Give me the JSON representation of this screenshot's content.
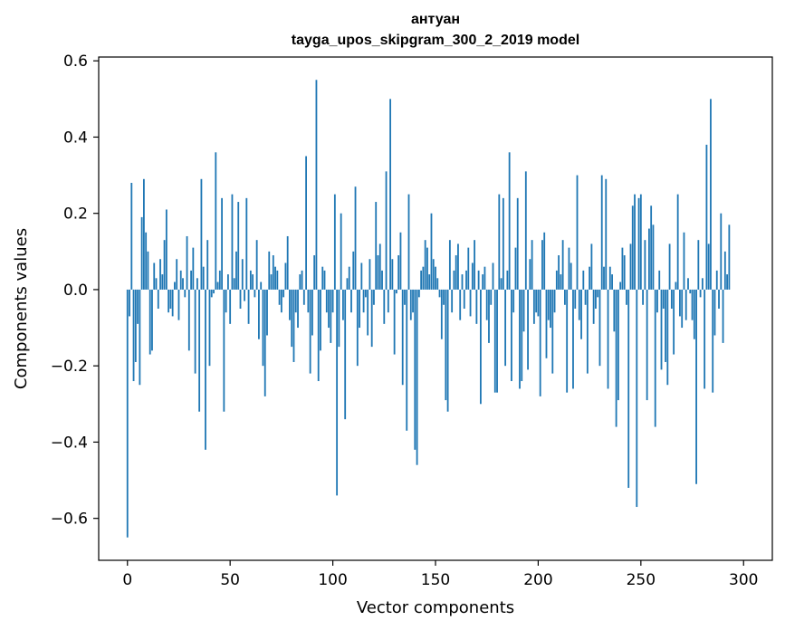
{
  "chart_data": {
    "type": "bar",
    "title": "антуан",
    "subtitle": "tayga_upos_skipgram_300_2_2019 model",
    "xlabel": "Vector components",
    "ylabel": "Components values",
    "xlim": [
      -14,
      314
    ],
    "ylim": [
      -0.71,
      0.61
    ],
    "xticks": [
      0,
      50,
      100,
      150,
      200,
      250,
      300
    ],
    "yticks": [
      -0.6,
      -0.4,
      -0.2,
      0.0,
      0.2,
      0.4,
      0.6
    ],
    "ytick_labels": [
      "−0.6",
      "−0.4",
      "−0.2",
      "0.0",
      "0.2",
      "0.4",
      "0.6"
    ],
    "bar_color": "#1f77b4",
    "grid": false,
    "legend": "none",
    "values": [
      -0.65,
      -0.07,
      0.28,
      -0.24,
      -0.19,
      -0.09,
      -0.25,
      0.19,
      0.29,
      0.15,
      0.1,
      -0.17,
      -0.16,
      0.07,
      0.03,
      -0.05,
      0.08,
      0.04,
      0.13,
      0.21,
      -0.06,
      -0.05,
      -0.07,
      0.02,
      0.08,
      -0.08,
      0.05,
      0.03,
      -0.02,
      0.14,
      -0.16,
      0.05,
      0.11,
      -0.22,
      0.03,
      -0.32,
      0.29,
      0.06,
      -0.42,
      0.13,
      -0.2,
      -0.02,
      -0.01,
      0.36,
      0.02,
      0.05,
      0.24,
      -0.32,
      -0.06,
      0.04,
      -0.09,
      0.25,
      0.03,
      0.1,
      0.23,
      -0.05,
      0.08,
      -0.03,
      0.24,
      -0.09,
      0.05,
      0.04,
      -0.02,
      0.13,
      -0.13,
      0.02,
      -0.2,
      -0.28,
      -0.12,
      0.1,
      0.04,
      0.09,
      0.06,
      0.05,
      -0.04,
      -0.06,
      -0.02,
      0.07,
      0.14,
      -0.08,
      -0.15,
      -0.19,
      -0.06,
      -0.1,
      0.04,
      0.05,
      -0.04,
      0.35,
      -0.06,
      -0.22,
      -0.12,
      0.09,
      0.55,
      -0.24,
      -0.16,
      0.06,
      0.05,
      -0.06,
      -0.1,
      -0.14,
      -0.06,
      0.25,
      -0.54,
      -0.15,
      0.2,
      -0.08,
      -0.34,
      0.03,
      0.06,
      -0.06,
      0.1,
      0.27,
      -0.2,
      -0.1,
      0.07,
      -0.06,
      -0.02,
      -0.12,
      0.08,
      -0.15,
      -0.04,
      0.23,
      0.09,
      0.12,
      0.05,
      -0.09,
      0.31,
      -0.06,
      0.5,
      0.08,
      -0.17,
      -0.01,
      0.09,
      0.15,
      -0.25,
      -0.04,
      -0.37,
      0.25,
      -0.08,
      -0.06,
      -0.42,
      -0.46,
      -0.02,
      0.05,
      0.06,
      0.13,
      0.11,
      0.04,
      0.2,
      0.08,
      0.06,
      0.03,
      -0.02,
      -0.13,
      -0.04,
      -0.29,
      -0.32,
      0.13,
      -0.06,
      0.05,
      0.09,
      0.12,
      -0.08,
      0.04,
      -0.05,
      0.05,
      0.11,
      -0.07,
      0.07,
      0.13,
      -0.09,
      0.05,
      -0.3,
      0.04,
      0.06,
      -0.08,
      -0.14,
      -0.04,
      0.07,
      -0.27,
      -0.27,
      0.25,
      0.03,
      0.24,
      -0.2,
      0.05,
      0.36,
      -0.24,
      -0.06,
      0.11,
      0.24,
      -0.26,
      -0.24,
      -0.11,
      0.31,
      -0.21,
      0.08,
      0.13,
      -0.09,
      -0.06,
      -0.07,
      -0.28,
      0.13,
      0.15,
      -0.18,
      -0.08,
      -0.1,
      -0.22,
      -0.06,
      0.05,
      0.09,
      0.04,
      0.13,
      -0.04,
      -0.27,
      0.11,
      0.07,
      -0.26,
      -0.05,
      0.3,
      -0.08,
      -0.13,
      0.05,
      -0.04,
      -0.22,
      0.06,
      0.12,
      -0.09,
      -0.05,
      -0.02,
      -0.2,
      0.3,
      0.06,
      0.29,
      -0.26,
      0.06,
      0.04,
      -0.11,
      -0.36,
      -0.29,
      0.02,
      0.11,
      0.09,
      -0.04,
      -0.52,
      0.12,
      0.22,
      0.25,
      -0.57,
      0.24,
      0.25,
      -0.04,
      0.13,
      -0.29,
      0.16,
      0.22,
      0.17,
      -0.36,
      -0.06,
      0.05,
      -0.21,
      -0.05,
      -0.19,
      -0.25,
      0.12,
      -0.05,
      -0.17,
      0.02,
      0.25,
      -0.07,
      -0.1,
      0.15,
      -0.08,
      0.03,
      -0.01,
      -0.08,
      -0.13,
      -0.51,
      0.13,
      -0.02,
      0.03,
      -0.26,
      0.38,
      0.12,
      0.5,
      -0.27,
      -0.12,
      0.05,
      -0.05,
      0.2,
      -0.14,
      0.1,
      0.04,
      0.17
    ]
  }
}
